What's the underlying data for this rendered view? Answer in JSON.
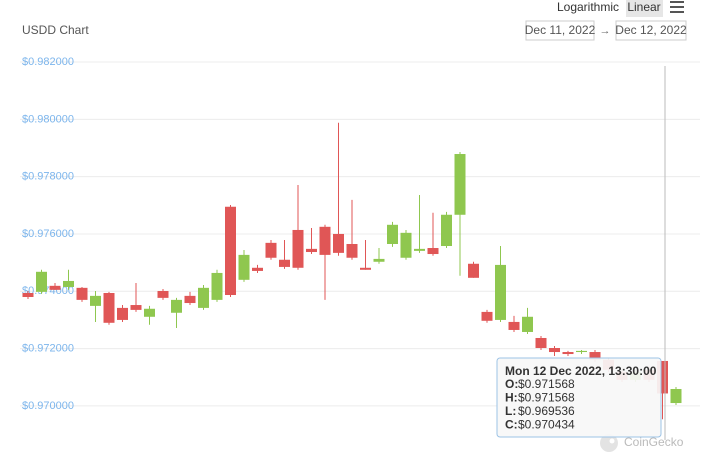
{
  "chart_data": {
    "type": "candlestick",
    "title": "USDD Chart",
    "open": [
      0.97394,
      0.97398,
      0.97419,
      0.97415,
      0.97412,
      0.97349,
      0.97394,
      0.97342,
      0.97352,
      0.97311,
      0.97401,
      0.97325,
      0.97384,
      0.97342,
      0.9737,
      0.97695,
      0.9744,
      0.97482,
      0.97569,
      0.9751,
      0.97614,
      0.97548,
      0.97625,
      0.976,
      0.97565,
      0.97482,
      0.97503,
      0.97565,
      0.97517,
      0.97541,
      0.97551,
      0.97558,
      0.97667,
      0.97496,
      0.97328,
      0.973,
      0.97293,
      0.97258,
      0.97237,
      0.97202,
      0.97188,
      0.97188,
      0.97188,
      0.97161,
      0.97119,
      0.97091,
      0.97126,
      0.971568,
      0.9701
    ],
    "high": [
      0.97401,
      0.97475,
      0.97429,
      0.97475,
      0.97415,
      0.97401,
      0.97398,
      0.97352,
      0.97429,
      0.97349,
      0.97408,
      0.97377,
      0.97398,
      0.97422,
      0.97475,
      0.97701,
      0.97544,
      0.97492,
      0.97579,
      0.97579,
      0.97771,
      0.97621,
      0.97632,
      0.97988,
      0.97719,
      0.97579,
      0.97551,
      0.97642,
      0.97614,
      0.97736,
      0.97674,
      0.97677,
      0.97886,
      0.97503,
      0.97335,
      0.97558,
      0.97314,
      0.97342,
      0.97244,
      0.97209,
      0.97192,
      0.97195,
      0.97195,
      0.97168,
      0.97126,
      0.97126,
      0.9714,
      0.971568,
      0.97066
    ],
    "low": [
      0.97373,
      0.97391,
      0.97405,
      0.97405,
      0.97363,
      0.97293,
      0.97283,
      0.97293,
      0.97328,
      0.97283,
      0.9737,
      0.97272,
      0.97352,
      0.97335,
      0.97363,
      0.9738,
      0.97433,
      0.97464,
      0.9751,
      0.97478,
      0.97475,
      0.9753,
      0.9737,
      0.97524,
      0.9751,
      0.97475,
      0.97496,
      0.97555,
      0.9751,
      0.97534,
      0.97524,
      0.97551,
      0.97454,
      0.97447,
      0.9729,
      0.97293,
      0.97258,
      0.97251,
      0.97195,
      0.97174,
      0.97174,
      0.97181,
      0.97154,
      0.97119,
      0.97084,
      0.97084,
      0.97084,
      0.969536,
      0.97003
    ],
    "close": [
      0.9738,
      0.97468,
      0.97405,
      0.97436,
      0.9737,
      0.97384,
      0.9729,
      0.973,
      0.97335,
      0.97339,
      0.97377,
      0.9737,
      0.97359,
      0.97412,
      0.97464,
      0.97387,
      0.97527,
      0.97471,
      0.97517,
      0.97485,
      0.97482,
      0.97537,
      0.97527,
      0.97534,
      0.97517,
      0.97475,
      0.97513,
      0.97632,
      0.97604,
      0.97548,
      0.9753,
      0.97667,
      0.97879,
      0.97447,
      0.97297,
      0.97492,
      0.97265,
      0.97311,
      0.97202,
      0.97188,
      0.97181,
      0.97192,
      0.97161,
      0.97126,
      0.97091,
      0.97119,
      0.97091,
      0.970434,
      0.97059
    ],
    "up_color": "#8fc74f",
    "down_color": "#e05656",
    "ylim": [
      0.96881,
      0.98242
    ],
    "yticks": [
      {
        "value": 0.97,
        "label": "$0.970000"
      },
      {
        "value": 0.972,
        "label": "$0.972000"
      },
      {
        "value": 0.974,
        "label": "$0.974000"
      },
      {
        "value": 0.976,
        "label": "$0.976000"
      },
      {
        "value": 0.978,
        "label": "$0.978000"
      },
      {
        "value": 0.98,
        "label": "$0.980000"
      },
      {
        "value": 0.982,
        "label": "$0.982000"
      }
    ],
    "grid": true,
    "log_scale": false
  },
  "ui": {
    "scale_buttons": [
      "Logarithmic",
      "Linear"
    ],
    "active_scale": 1,
    "date_from": "Dec 11, 2022",
    "date_separator": "→",
    "date_to": "Dec 12, 2022",
    "tooltip": {
      "title": "Mon 12 Dec 2022, 13:30:00",
      "index": 47,
      "rows": [
        {
          "label": "O:",
          "value": "$0.971568"
        },
        {
          "label": "H:",
          "value": "$0.971568"
        },
        {
          "label": "L:",
          "value": "$0.969536"
        },
        {
          "label": "C:",
          "value": "$0.970434"
        }
      ]
    },
    "watermark": "CoinGecko"
  }
}
